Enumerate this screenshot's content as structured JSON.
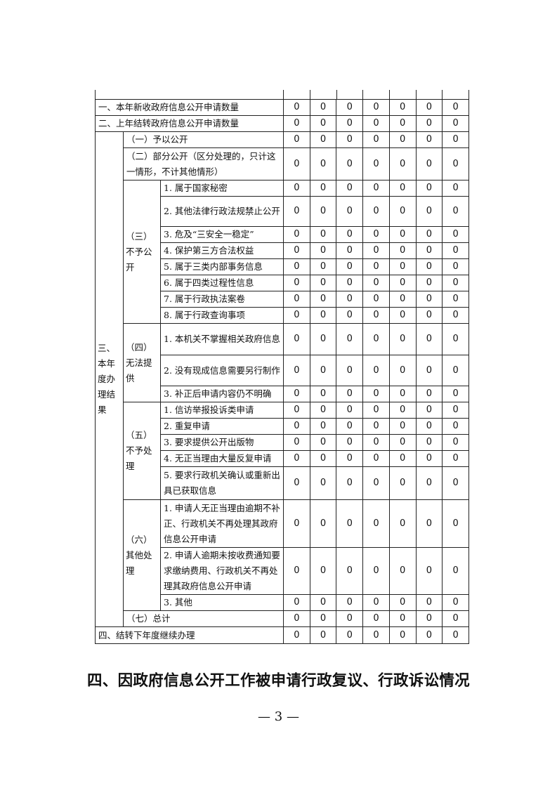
{
  "table": {
    "top_rows": [
      {
        "label": "一、本年新收政府信息公开申请数量",
        "values": [
          0,
          0,
          0,
          0,
          0,
          0,
          0
        ]
      },
      {
        "label": "二、上年结转政府信息公开申请数量",
        "values": [
          0,
          0,
          0,
          0,
          0,
          0,
          0
        ]
      }
    ],
    "section3": {
      "label": "三、本年度办理结果",
      "groups": [
        {
          "label": "（一）予以公开",
          "values": [
            0,
            0,
            0,
            0,
            0,
            0,
            0
          ]
        },
        {
          "label": "（二）部分公开（区分处理的，只计这一情形，不计其他情形）",
          "values": [
            0,
            0,
            0,
            0,
            0,
            0,
            0
          ]
        },
        {
          "label": "（三）不予公开",
          "items": [
            {
              "label": "1. 属于国家秘密",
              "values": [
                0,
                0,
                0,
                0,
                0,
                0,
                0
              ]
            },
            {
              "label": "2. 其他法律行政法规禁止公开",
              "values": [
                0,
                0,
                0,
                0,
                0,
                0,
                0
              ]
            },
            {
              "label": "3. 危及“三安全一稳定”",
              "values": [
                0,
                0,
                0,
                0,
                0,
                0,
                0
              ]
            },
            {
              "label": "4. 保护第三方合法权益",
              "values": [
                0,
                0,
                0,
                0,
                0,
                0,
                0
              ]
            },
            {
              "label": "5. 属于三类内部事务信息",
              "values": [
                0,
                0,
                0,
                0,
                0,
                0,
                0
              ]
            },
            {
              "label": "6. 属于四类过程性信息",
              "values": [
                0,
                0,
                0,
                0,
                0,
                0,
                0
              ]
            },
            {
              "label": "7. 属于行政执法案卷",
              "values": [
                0,
                0,
                0,
                0,
                0,
                0,
                0
              ]
            },
            {
              "label": "8. 属于行政查询事项",
              "values": [
                0,
                0,
                0,
                0,
                0,
                0,
                0
              ]
            }
          ]
        },
        {
          "label": "（四）无法提供",
          "items": [
            {
              "label": "1. 本机关不掌握相关政府信息",
              "values": [
                0,
                0,
                0,
                0,
                0,
                0,
                0
              ]
            },
            {
              "label": "2. 没有现成信息需要另行制作",
              "values": [
                0,
                0,
                0,
                0,
                0,
                0,
                0
              ]
            },
            {
              "label": "3. 补正后申请内容仍不明确",
              "values": [
                0,
                0,
                0,
                0,
                0,
                0,
                0
              ]
            }
          ]
        },
        {
          "label": "（五）不予处理",
          "items": [
            {
              "label": "1. 信访举报投诉类申请",
              "values": [
                0,
                0,
                0,
                0,
                0,
                0,
                0
              ]
            },
            {
              "label": "2. 重复申请",
              "values": [
                0,
                0,
                0,
                0,
                0,
                0,
                0
              ]
            },
            {
              "label": "3. 要求提供公开出版物",
              "values": [
                0,
                0,
                0,
                0,
                0,
                0,
                0
              ]
            },
            {
              "label": "4. 无正当理由大量反复申请",
              "values": [
                0,
                0,
                0,
                0,
                0,
                0,
                0
              ]
            },
            {
              "label": "5. 要求行政机关确认或重新出具已获取信息",
              "values": [
                0,
                0,
                0,
                0,
                0,
                0,
                0
              ]
            }
          ]
        },
        {
          "label": "（六）其他处理",
          "items": [
            {
              "label": "1. 申请人无正当理由逾期不补正、行政机关不再处理其政府信息公开申请",
              "values": [
                0,
                0,
                0,
                0,
                0,
                0,
                0
              ]
            },
            {
              "label": "2. 申请人逾期未按收费通知要求缴纳费用、行政机关不再处理其政府信息公开申请",
              "values": [
                0,
                0,
                0,
                0,
                0,
                0,
                0
              ]
            },
            {
              "label": "3. 其他",
              "values": [
                0,
                0,
                0,
                0,
                0,
                0,
                0
              ]
            }
          ]
        },
        {
          "label": "（七）总计",
          "values": [
            0,
            0,
            0,
            0,
            0,
            0,
            0
          ]
        }
      ]
    },
    "bottom_rows": [
      {
        "label": "四、结转下年度继续办理",
        "values": [
          0,
          0,
          0,
          0,
          0,
          0,
          0
        ]
      }
    ]
  },
  "heading": "四、因政府信息公开工作被申请行政复议、行政诉讼情况",
  "page_number": "— 3 —"
}
